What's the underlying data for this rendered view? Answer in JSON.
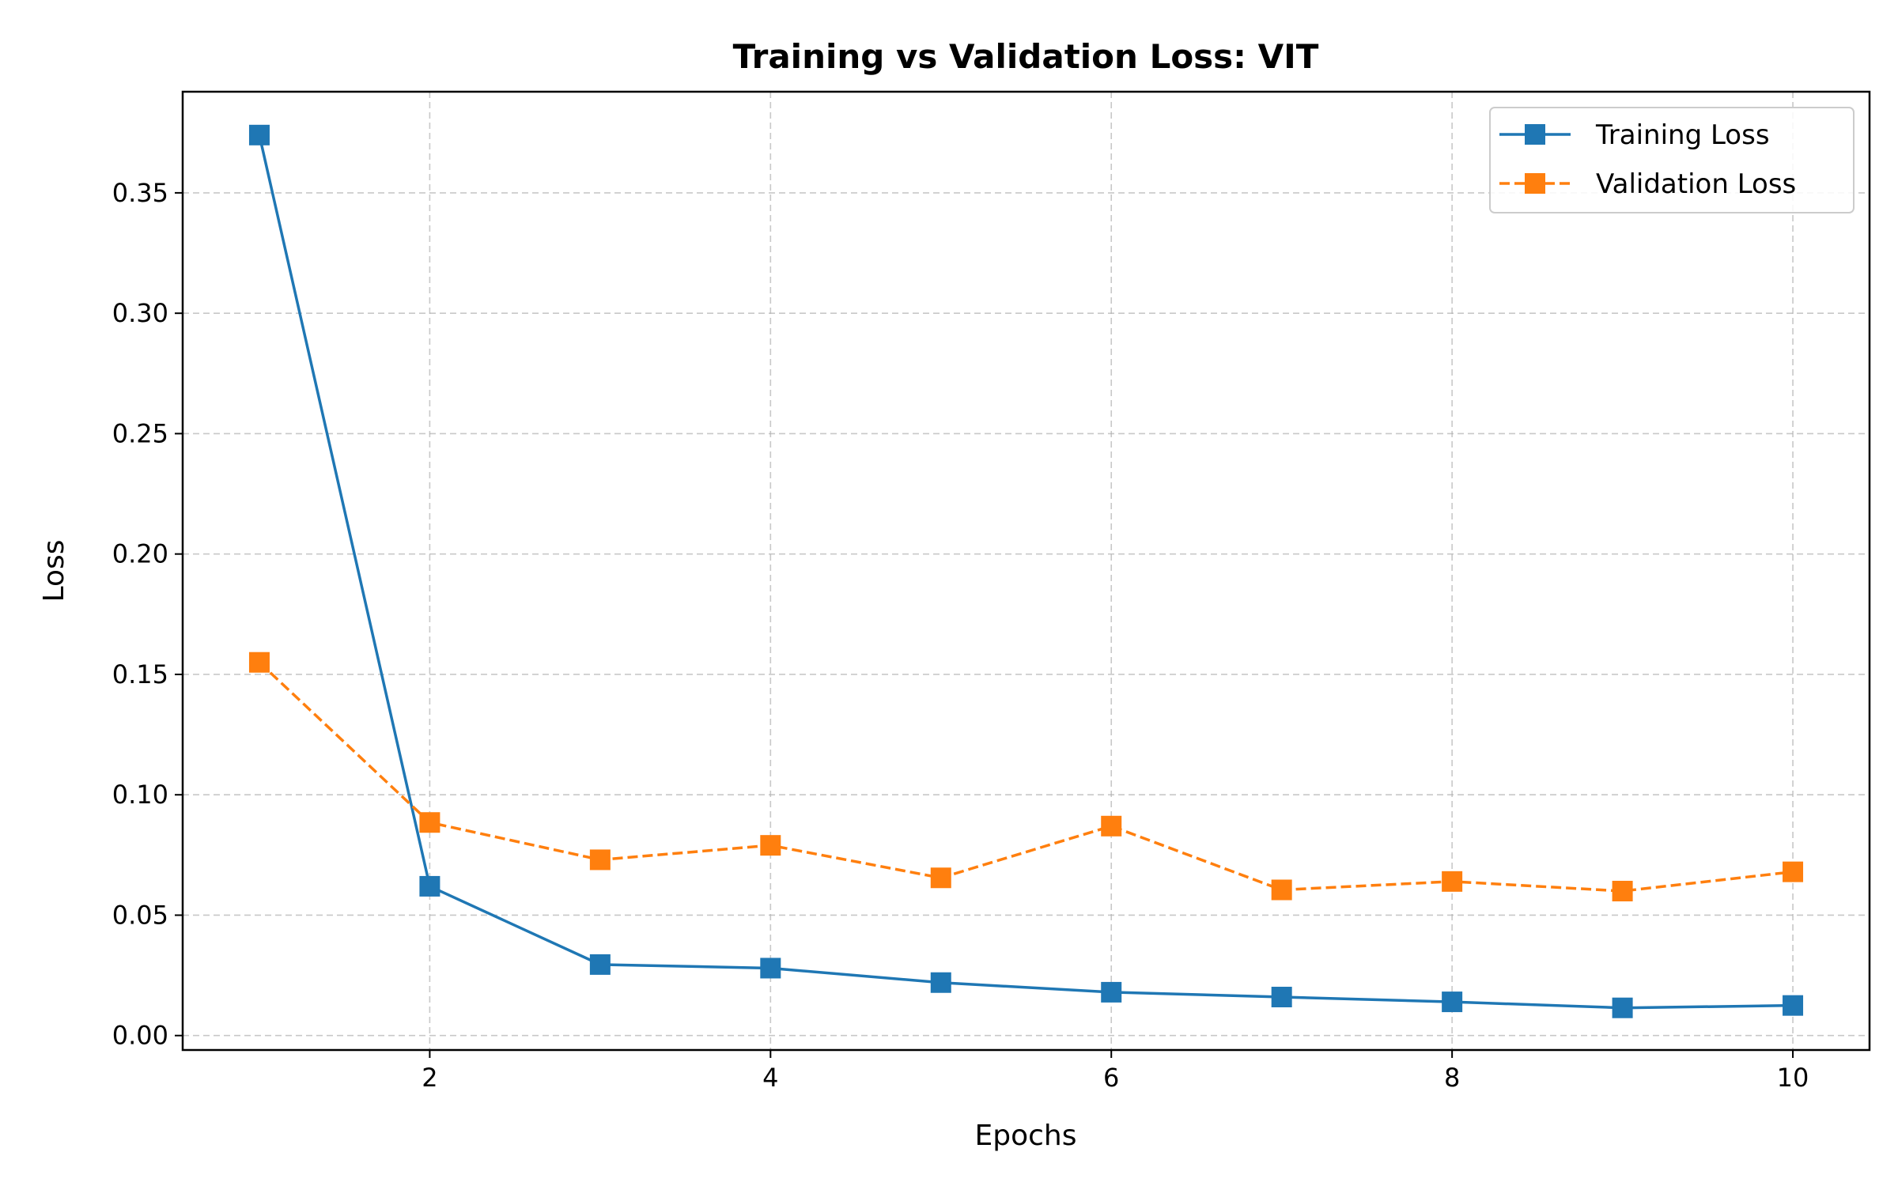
{
  "chart_data": {
    "type": "line",
    "title": "Training vs Validation Loss: VIT",
    "xlabel": "Epochs",
    "ylabel": "Loss",
    "x": [
      1,
      2,
      3,
      4,
      5,
      6,
      7,
      8,
      9,
      10
    ],
    "xlim": [
      0.55,
      10.45
    ],
    "ylim": [
      -0.006,
      0.392
    ],
    "xticks": [
      2,
      4,
      6,
      8,
      10
    ],
    "xtick_labels": [
      "2",
      "4",
      "6",
      "8",
      "10"
    ],
    "yticks": [
      0.0,
      0.05,
      0.1,
      0.15,
      0.2,
      0.25,
      0.3,
      0.35
    ],
    "ytick_labels": [
      "0.00",
      "0.05",
      "0.10",
      "0.15",
      "0.20",
      "0.25",
      "0.30",
      "0.35"
    ],
    "grid": true,
    "legend_position": "top-right",
    "series": [
      {
        "name": "Training Loss",
        "color": "#1f77b4",
        "line_style": "solid",
        "marker": "square",
        "values": [
          0.374,
          0.062,
          0.0295,
          0.028,
          0.022,
          0.018,
          0.016,
          0.014,
          0.0115,
          0.0125
        ]
      },
      {
        "name": "Validation Loss",
        "color": "#ff7f0e",
        "line_style": "dashed",
        "marker": "square",
        "values": [
          0.155,
          0.0885,
          0.073,
          0.079,
          0.0655,
          0.087,
          0.0605,
          0.064,
          0.06,
          0.068
        ]
      }
    ]
  }
}
